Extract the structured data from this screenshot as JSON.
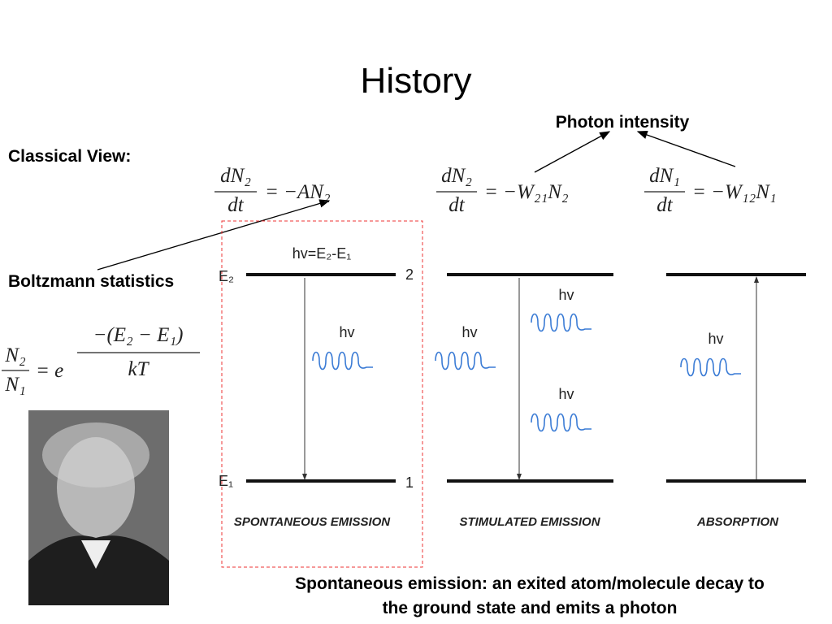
{
  "title": "History",
  "annotations": {
    "photon_intensity": "Photon intensity",
    "classical_view": "Classical View:",
    "boltzmann": "Boltzmann statistics"
  },
  "equations": [
    {
      "numerator": "dN₂",
      "denominator": "dt",
      "rhs": "= −AN₂"
    },
    {
      "numerator": "dN₂",
      "denominator": "dt",
      "rhs": "= −W₂₁N₂"
    },
    {
      "numerator": "dN₁",
      "denominator": "dt",
      "rhs": "= −W₁₂N₁"
    },
    {
      "numerator": "N₂",
      "denominator": "N₁",
      "rhs": "= e",
      "exponent_numerator": "−(E₂ − E₁)",
      "exponent_denominator": "kT"
    }
  ],
  "diagram": {
    "transition_label": "hv=E₂-E₁",
    "levels": {
      "upper": "E₂",
      "lower": "E₁",
      "upper_number": "2",
      "lower_number": "1"
    },
    "panels": [
      {
        "label": "SPONTANEOUS EMISSION",
        "photons": [
          "hv"
        ]
      },
      {
        "label": "STIMULATED EMISSION",
        "photons": [
          "hv",
          "hv",
          "hv"
        ]
      },
      {
        "label": "ABSORPTION",
        "photons": [
          "hv"
        ]
      }
    ]
  },
  "caption": [
    "Spontaneous emission: an exited atom/molecule decay to",
    "the ground state and emits a photon"
  ]
}
